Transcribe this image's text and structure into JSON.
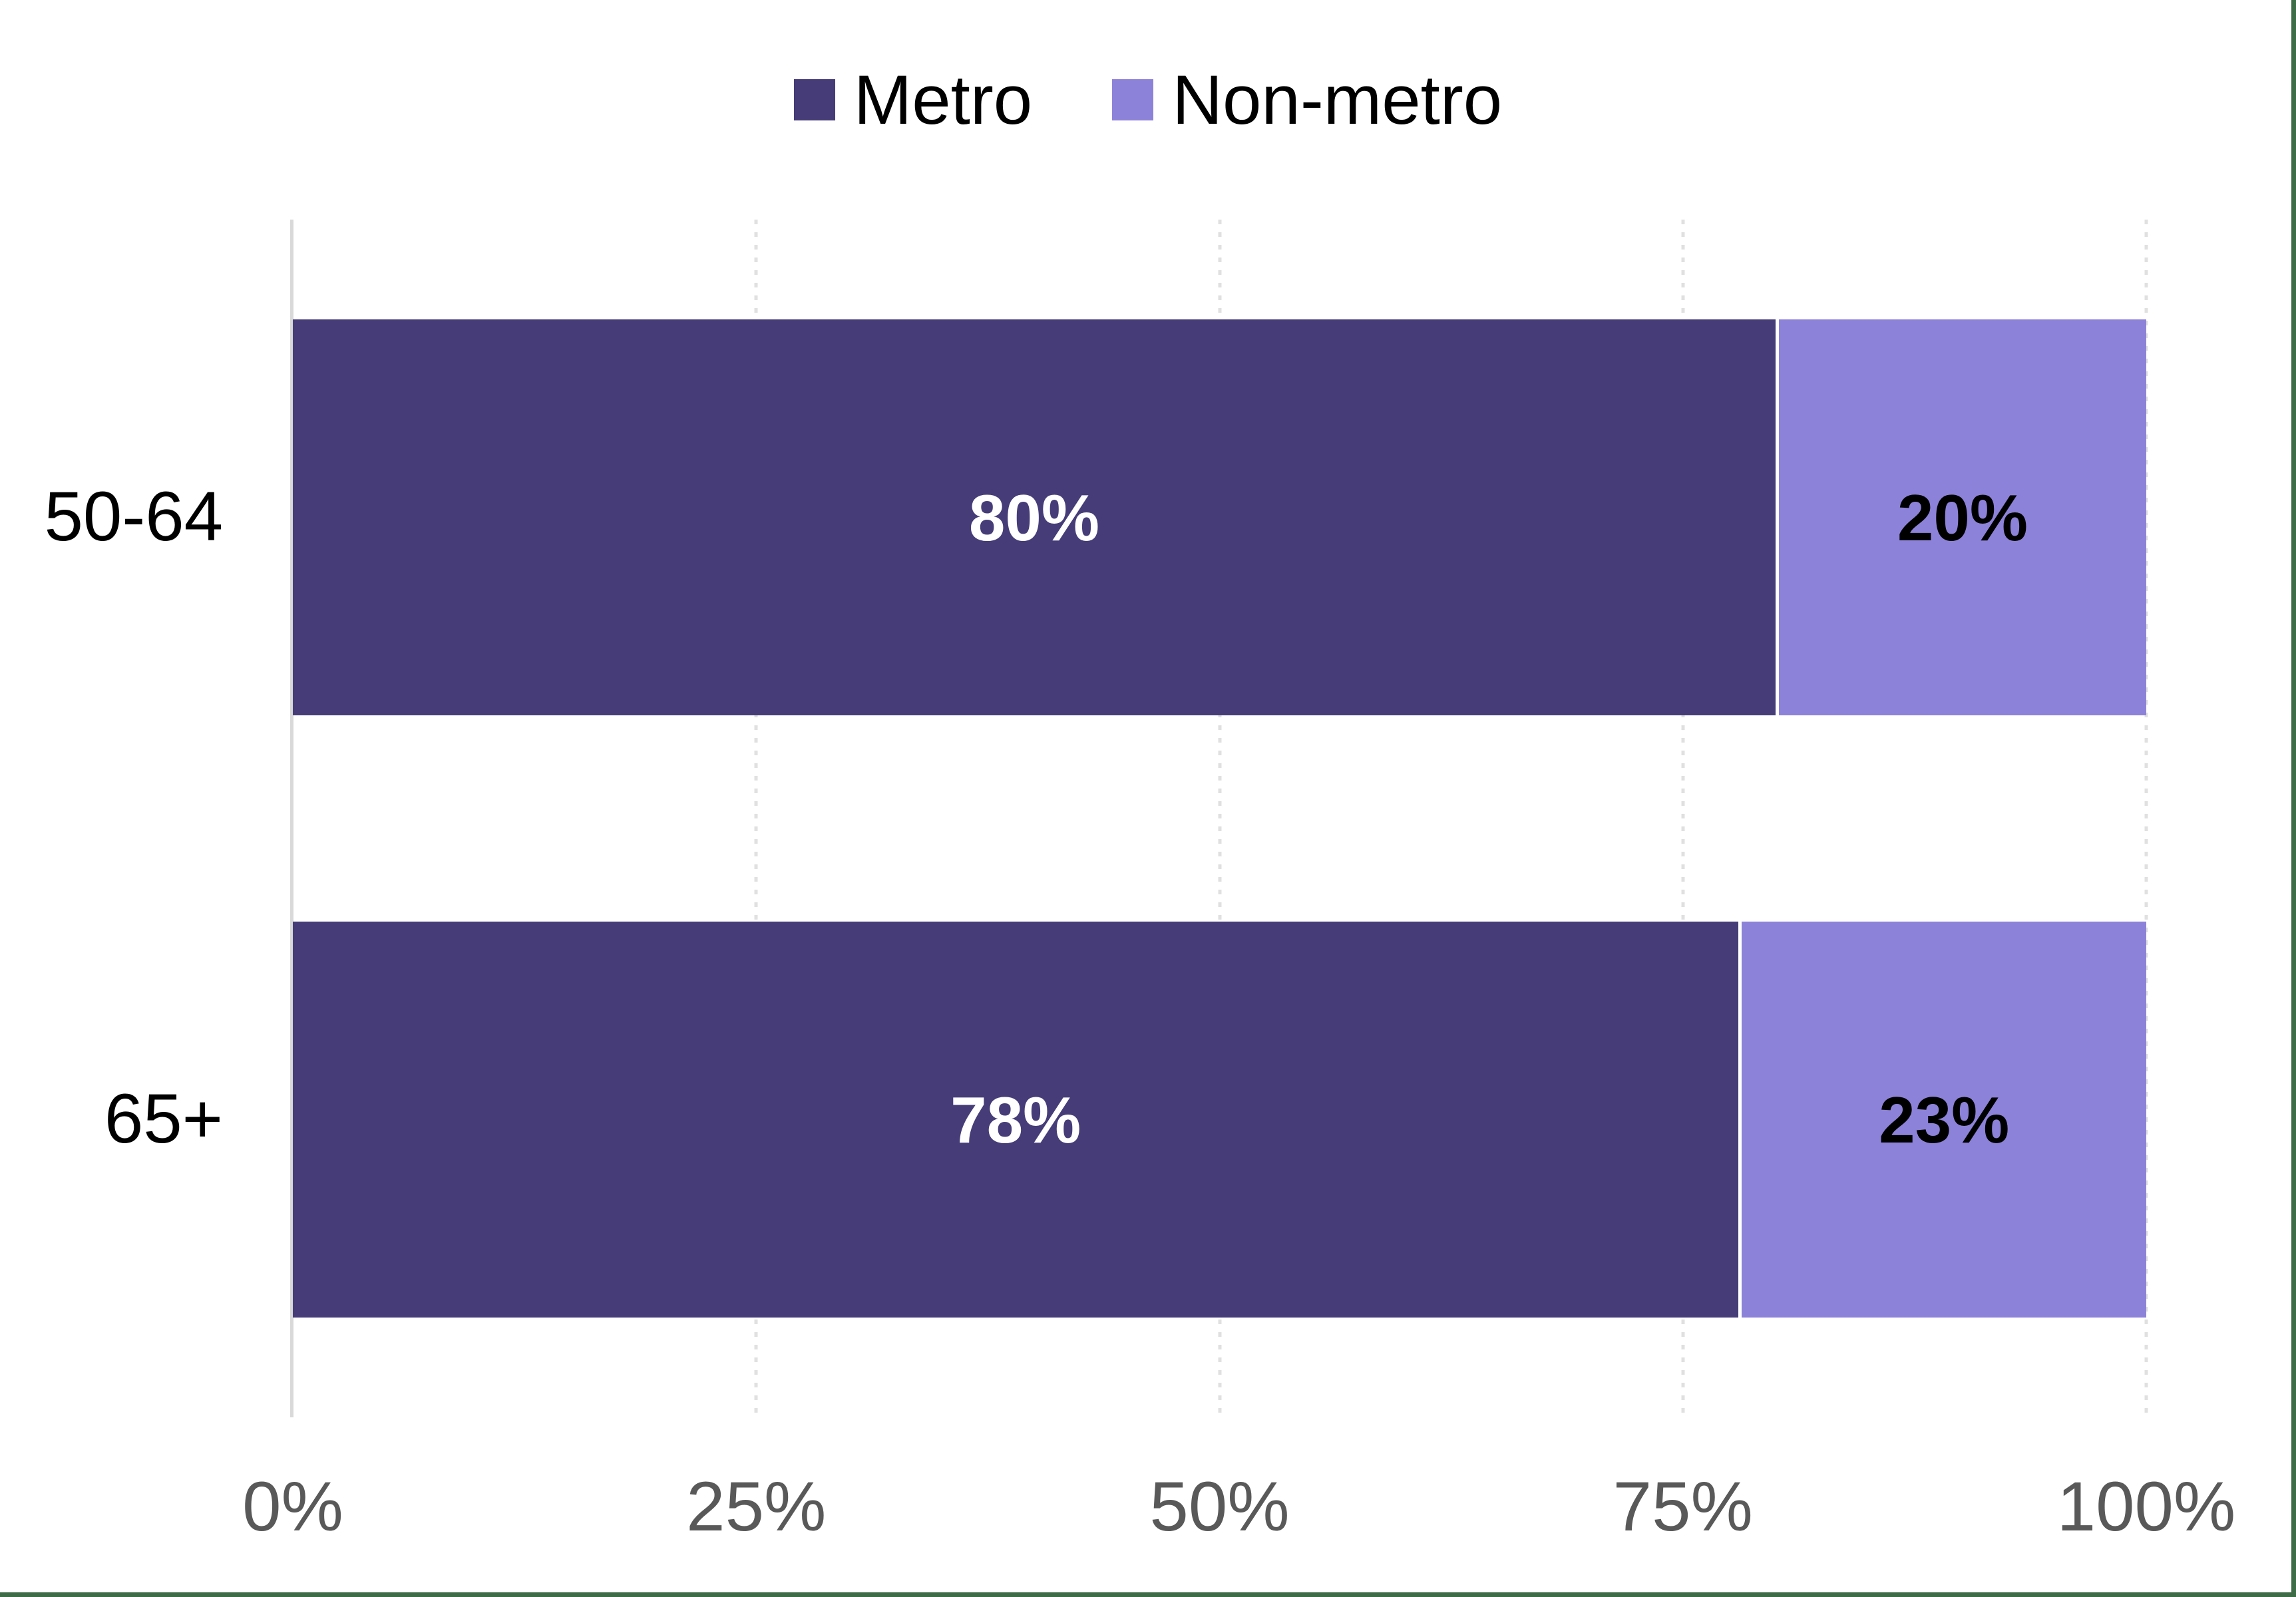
{
  "chart_data": {
    "type": "bar",
    "orientation": "horizontal",
    "stacked": true,
    "title": "",
    "categories": [
      "50-64",
      "65+"
    ],
    "series": [
      {
        "name": "Metro",
        "color": "#453C78",
        "values": [
          80,
          78
        ],
        "data_labels": [
          "80%",
          "78%"
        ]
      },
      {
        "name": "Non-metro",
        "color": "#8D82D9",
        "values": [
          20,
          23
        ],
        "data_labels": [
          "20%",
          "23%"
        ]
      }
    ],
    "x_axis": {
      "tick_labels": [
        "0%",
        "25%",
        "50%",
        "75%",
        "100%"
      ],
      "range": [
        0,
        100
      ],
      "gridlines": "vertical-dotted"
    },
    "legend_position": "top-center"
  },
  "legend": {
    "items": [
      {
        "label": "Metro",
        "color": "#453C78"
      },
      {
        "label": "Non-metro",
        "color": "#8D82D9"
      }
    ]
  },
  "rows": [
    {
      "category": "50-64",
      "metro": {
        "label": "80%",
        "value": 80
      },
      "nonmetro": {
        "label": "20%",
        "value": 20
      }
    },
    {
      "category": "65+",
      "metro": {
        "label": "78%",
        "value": 78
      },
      "nonmetro": {
        "label": "23%",
        "value": 23
      }
    }
  ],
  "x_ticks": [
    "0%",
    "25%",
    "50%",
    "75%",
    "100%"
  ],
  "colors": {
    "metro": "#453C78",
    "nonmetro": "#8D82D9",
    "tick_text": "#595959",
    "gridline": "#E0E0E0",
    "axis_line": "#D9D9D9",
    "accent_edge": "#3D6C47",
    "label_on_dark": "#FFFFFF",
    "label_on_light": "#000000",
    "background": "#FFFFFF"
  }
}
